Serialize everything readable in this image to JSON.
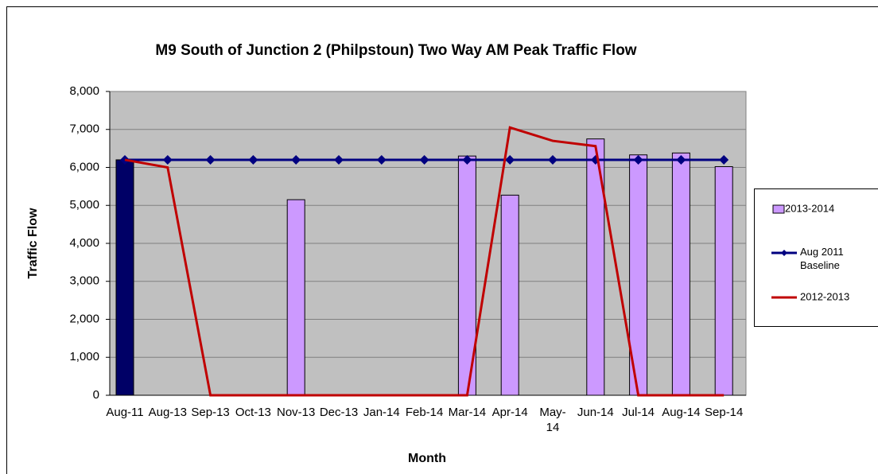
{
  "chart_data": {
    "type": "bar_line",
    "title": "M9 South of Junction 2 (Philpstoun) Two Way AM Peak Traffic Flow",
    "x_label": "Month",
    "y_label": "Traffic Flow",
    "categories": [
      "Aug-11",
      "Aug-13",
      "Sep-13",
      "Oct-13",
      "Nov-13",
      "Dec-13",
      "Jan-14",
      "Feb-14",
      "Mar-14",
      "Apr-14",
      "May-14",
      "Jun-14",
      "Jul-14",
      "Aug-14",
      "Sep-14"
    ],
    "series": [
      {
        "name": "2013-2014",
        "kind": "bar",
        "color": "#cc99ff",
        "colors": [
          "#000066",
          null,
          null,
          null,
          null,
          null,
          null,
          null,
          null,
          null,
          null,
          null,
          null,
          null,
          null
        ],
        "values": [
          6200,
          null,
          null,
          null,
          5150,
          null,
          null,
          null,
          6300,
          5270,
          null,
          6750,
          6330,
          6380,
          6020
        ]
      },
      {
        "name": "Aug 2011 Baseline",
        "kind": "line",
        "marker": "diamond",
        "color": "#000080",
        "values": [
          6200,
          6200,
          6200,
          6200,
          6200,
          6200,
          6200,
          6200,
          6200,
          6200,
          6200,
          6200,
          6200,
          6200,
          6200
        ]
      },
      {
        "name": "2012-2013",
        "kind": "line",
        "color": "#c00000",
        "values": [
          6200,
          6000,
          0,
          0,
          0,
          0,
          0,
          0,
          0,
          7050,
          6700,
          6560,
          0,
          0,
          0
        ]
      }
    ],
    "ylim": [
      0,
      8000
    ],
    "yticks": [
      0,
      {
        "value": 1000,
        "label": "1,000"
      },
      {
        "value": 2000,
        "label": "2,000"
      },
      {
        "value": 3000,
        "label": "3,000"
      },
      {
        "value": 4000,
        "label": "4,000"
      },
      {
        "value": 5000,
        "label": "5,000"
      },
      {
        "value": 6000,
        "label": "6,000"
      },
      {
        "value": 7000,
        "label": "7,000"
      },
      {
        "value": 8000,
        "label": "8,000"
      }
    ],
    "grid": true,
    "plot_background": "#c0c0c0",
    "legend": "right"
  }
}
